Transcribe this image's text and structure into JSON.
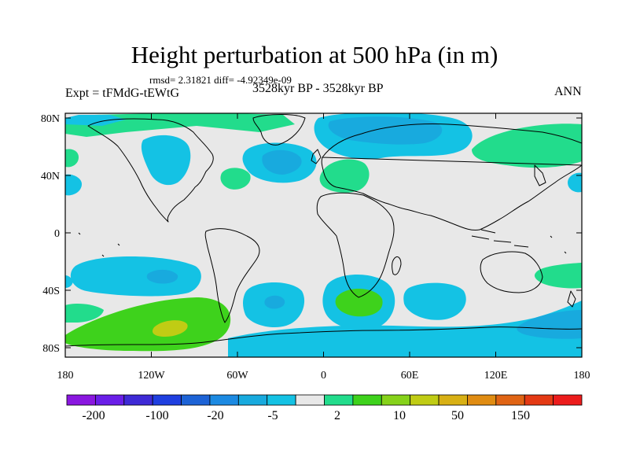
{
  "title": "Height perturbation at 500 hPa (in m)",
  "stats": "rmsd= 2.31821 diff= -4.92349e-09",
  "experiment": "Expt = tFMdG-tEWtG",
  "period": "3528kyr BP - 3528kyr BP",
  "season": "ANN",
  "lat_ticks": [
    "80N",
    "40N",
    "0",
    "40S",
    "80S"
  ],
  "lon_ticks": [
    "180",
    "120W",
    "60W",
    "0",
    "60E",
    "120E",
    "180"
  ],
  "colorbar_labels": [
    "-200",
    "-100",
    "-20",
    "-5",
    "2",
    "10",
    "50",
    "150"
  ],
  "colorbar_colors": [
    "#8a17e0",
    "#6a1ee8",
    "#3e2ad6",
    "#1f3fe0",
    "#1d63d6",
    "#1c8ae2",
    "#18aade",
    "#14c2e4",
    "#e8e8e8",
    "#22dc8c",
    "#3ed21c",
    "#86d21a",
    "#c0cc14",
    "#d8b014",
    "#e08c12",
    "#e06414",
    "#e43a14",
    "#ec1c1c"
  ],
  "palette": {
    "background": "#e8e8e8",
    "blue_light": "#14c2e4",
    "blue_mid": "#18aade",
    "blue_deep": "#1c8ae2",
    "green": "#22dc8c",
    "green_bright": "#3ed21c",
    "yellow_green": "#c0cc14",
    "coast": "#000000"
  }
}
